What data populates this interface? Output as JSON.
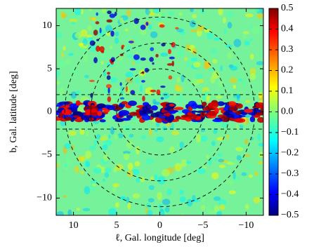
{
  "chart_data": {
    "type": "heatmap",
    "xlabel": "ℓ, Gal. longitude [deg]",
    "ylabel": "b, Gal. latitude [deg]",
    "xlim": [
      12,
      -12
    ],
    "ylim": [
      -12,
      12
    ],
    "xticks": [
      {
        "value": 10,
        "label": "10"
      },
      5,
      0,
      {
        "value": -5,
        "label": "−5"
      },
      {
        "value": -10,
        "label": "−10"
      }
    ],
    "yticks": [
      {
        "value": -10,
        "label": "−10"
      },
      {
        "value": -5,
        "label": "−5"
      },
      0,
      5,
      10
    ],
    "circle_radii": [
      5,
      8,
      11
    ],
    "hlines": [
      2,
      -2
    ],
    "colorbar": {
      "colormap": "jet",
      "lim": [
        -0.5,
        0.5
      ],
      "ticks": [
        {
          "value": -0.5,
          "label": "−0.5"
        },
        {
          "value": -0.4,
          "label": "−0.4"
        },
        {
          "value": -0.3,
          "label": "−0.3"
        },
        {
          "value": -0.2,
          "label": "−0.2"
        },
        {
          "value": -0.1,
          "label": "−0.1"
        },
        {
          "value": 0,
          "label": "0.0"
        },
        0.1,
        0.2,
        0.3,
        0.4,
        0.5
      ]
    }
  }
}
